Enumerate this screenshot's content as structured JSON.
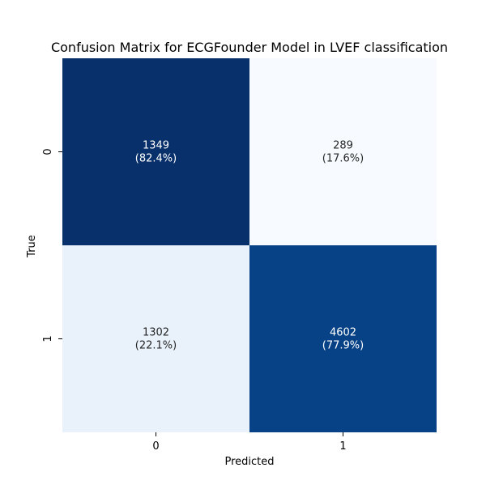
{
  "chart_data": {
    "type": "heatmap",
    "title": "Confusion Matrix for ECGFounder Model in LVEF classification",
    "xlabel": "Predicted",
    "ylabel": "True",
    "x_categories": [
      "0",
      "1"
    ],
    "y_categories": [
      "0",
      "1"
    ],
    "values": [
      [
        1349,
        289
      ],
      [
        1302,
        4602
      ]
    ],
    "labels": [
      [
        "1349",
        "289"
      ],
      [
        "1302",
        "4602"
      ]
    ],
    "percent_labels": [
      [
        "(82.4%)",
        "(17.6%)"
      ],
      [
        "(22.1%)",
        "(77.9%)"
      ]
    ],
    "row_percents": [
      [
        82.4,
        17.6
      ],
      [
        22.1,
        77.9
      ]
    ],
    "colormap": "Blues",
    "colors": {
      "low": "#f7fbff",
      "mid_low": "#deebf7",
      "mid": "#6baed6",
      "high": "#08306b",
      "text_dark": "#262626",
      "text_light": "#ffffff"
    },
    "grid": false,
    "colorbar": false
  }
}
